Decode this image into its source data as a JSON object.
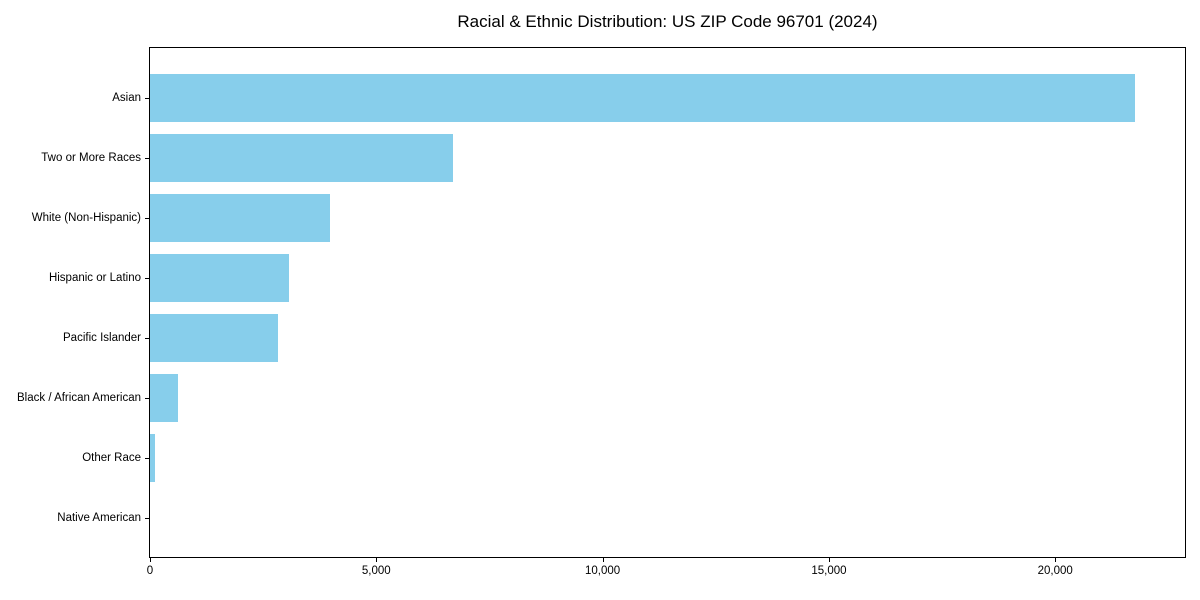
{
  "title": "Racial & Ethnic Distribution: US ZIP Code 96701 (2024)",
  "chart_data": {
    "type": "bar",
    "orientation": "horizontal",
    "title": "Racial & Ethnic Distribution: US ZIP Code 96701 (2024)",
    "categories": [
      "Asian",
      "Two or More Races",
      "White (Non-Hispanic)",
      "Hispanic or Latino",
      "Pacific Islander",
      "Black / African American",
      "Other Race",
      "Native American"
    ],
    "values": [
      21770,
      6700,
      3970,
      3070,
      2820,
      610,
      120,
      0
    ],
    "xlabel": "",
    "ylabel": "",
    "xlim": [
      0,
      22867
    ],
    "x_ticks": [
      0,
      5000,
      10000,
      15000,
      20000
    ],
    "x_tick_labels": [
      "0",
      "5,000",
      "10,000",
      "15,000",
      "20,000"
    ],
    "bar_color": "#87ceeb",
    "grid": false,
    "legend": null
  }
}
